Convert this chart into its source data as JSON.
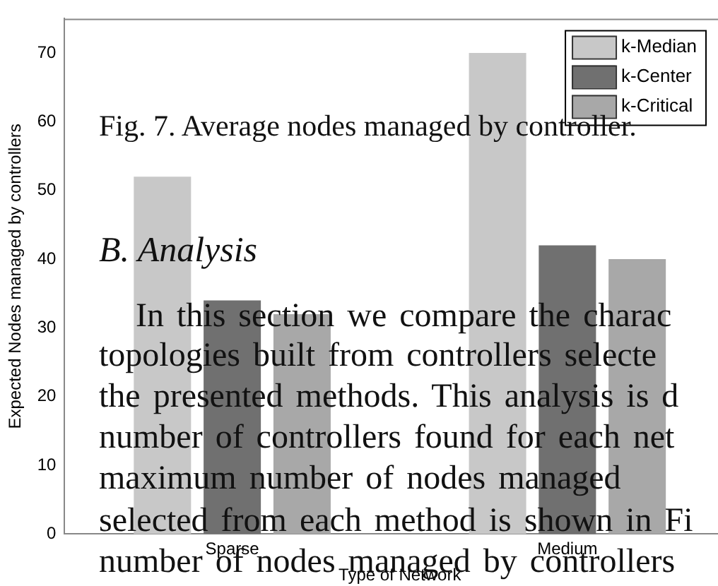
{
  "chart_data": {
    "type": "bar",
    "xlabel": "Type of Network",
    "ylabel": "Expected Nodes managed by controllers",
    "categories": [
      "Sparse",
      "Medium"
    ],
    "series": [
      {
        "name": "k-Median",
        "color": "#c8c8c8",
        "values": [
          52,
          70
        ]
      },
      {
        "name": "k-Center",
        "color": "#707070",
        "values": [
          34,
          42
        ]
      },
      {
        "name": "k-Critical",
        "color": "#a8a8a8",
        "values": [
          32,
          40
        ]
      }
    ],
    "ylim": [
      0,
      75
    ],
    "yticks": [
      0,
      10,
      20,
      30,
      40,
      50,
      60,
      70
    ],
    "grid": false,
    "legend": "top right",
    "annotations": [
      "Fig. 7.  Average nodes managed by controller.",
      "B. Analysis",
      "In this section we compare the charac",
      "topologies built from controllers selecte",
      "the presented methods. This analysis is d",
      "number of controllers found for each net",
      "maximum number of nodes managed",
      "selected from each method is shown in Fi",
      "number of nodes managed by controllers"
    ]
  }
}
